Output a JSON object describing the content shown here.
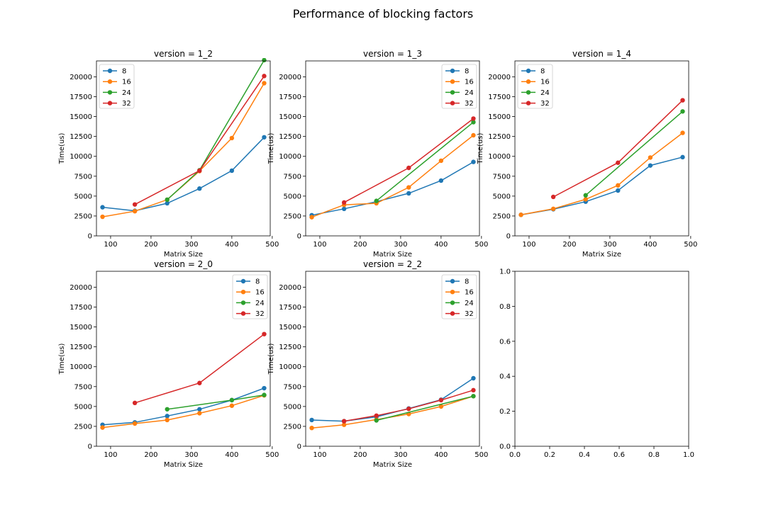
{
  "figure": {
    "title": "Performance of blocking factors"
  },
  "legend_labels": [
    "8",
    "16",
    "24",
    "32"
  ],
  "colors": {
    "8": "#1f77b4",
    "16": "#ff7f0e",
    "24": "#2ca02c",
    "32": "#d62728"
  },
  "chart_data": [
    {
      "type": "line",
      "title": "version = 1_2",
      "xlabel": "Matrix Size",
      "ylabel": "Time(us)",
      "xlim": [
        65,
        495
      ],
      "ylim": [
        0,
        22000
      ],
      "xticks": [
        100,
        200,
        300,
        400,
        500
      ],
      "yticks": [
        0,
        2500,
        5000,
        7500,
        10000,
        12500,
        15000,
        17500,
        20000
      ],
      "legend": "top-left",
      "series": [
        {
          "name": "8",
          "points": [
            [
              80,
              3600
            ],
            [
              160,
              3150
            ],
            [
              240,
              4100
            ],
            [
              320,
              5950
            ],
            [
              400,
              8200
            ],
            [
              480,
              12400
            ]
          ]
        },
        {
          "name": "16",
          "points": [
            [
              80,
              2400
            ],
            [
              160,
              3100
            ],
            [
              240,
              4550
            ],
            [
              320,
              8150
            ],
            [
              400,
              12300
            ],
            [
              480,
              19200
            ]
          ]
        },
        {
          "name": "24",
          "points": [
            [
              240,
              4550
            ],
            [
              320,
              8250
            ],
            [
              480,
              22100
            ]
          ]
        },
        {
          "name": "32",
          "points": [
            [
              160,
              3950
            ],
            [
              320,
              8200
            ],
            [
              480,
              20100
            ]
          ]
        }
      ]
    },
    {
      "type": "line",
      "title": "version = 1_3",
      "xlabel": "Matrix Size",
      "ylabel": "Time(us)",
      "xlim": [
        65,
        495
      ],
      "ylim": [
        0,
        22000
      ],
      "xticks": [
        100,
        200,
        300,
        400,
        500
      ],
      "yticks": [
        0,
        2500,
        5000,
        7500,
        10000,
        12500,
        15000,
        17500,
        20000
      ],
      "legend": "top-right",
      "series": [
        {
          "name": "8",
          "points": [
            [
              80,
              2600
            ],
            [
              160,
              3400
            ],
            [
              240,
              4300
            ],
            [
              320,
              5350
            ],
            [
              400,
              6950
            ],
            [
              480,
              9300
            ]
          ]
        },
        {
          "name": "16",
          "points": [
            [
              80,
              2350
            ],
            [
              160,
              3900
            ],
            [
              240,
              4100
            ],
            [
              320,
              6100
            ],
            [
              400,
              9450
            ],
            [
              480,
              12650
            ]
          ]
        },
        {
          "name": "24",
          "points": [
            [
              240,
              4400
            ],
            [
              480,
              14300
            ]
          ]
        },
        {
          "name": "32",
          "points": [
            [
              160,
              4200
            ],
            [
              320,
              8550
            ],
            [
              480,
              14750
            ]
          ]
        }
      ]
    },
    {
      "type": "line",
      "title": "version = 1_4",
      "xlabel": "Matrix Size",
      "ylabel": "Time(us)",
      "xlim": [
        65,
        495
      ],
      "ylim": [
        0,
        22000
      ],
      "xticks": [
        100,
        200,
        300,
        400,
        500
      ],
      "yticks": [
        0,
        2500,
        5000,
        7500,
        10000,
        12500,
        15000,
        17500,
        20000
      ],
      "legend": "top-left",
      "series": [
        {
          "name": "8",
          "points": [
            [
              80,
              2650
            ],
            [
              160,
              3350
            ],
            [
              240,
              4300
            ],
            [
              320,
              5700
            ],
            [
              400,
              8850
            ],
            [
              480,
              9900
            ]
          ]
        },
        {
          "name": "16",
          "points": [
            [
              80,
              2650
            ],
            [
              160,
              3400
            ],
            [
              240,
              4600
            ],
            [
              320,
              6350
            ],
            [
              400,
              9850
            ],
            [
              480,
              12950
            ]
          ]
        },
        {
          "name": "24",
          "points": [
            [
              240,
              5100
            ],
            [
              480,
              15650
            ]
          ]
        },
        {
          "name": "32",
          "points": [
            [
              160,
              4900
            ],
            [
              320,
              9200
            ],
            [
              480,
              17050
            ]
          ]
        }
      ]
    },
    {
      "type": "line",
      "title": "version = 2_0",
      "xlabel": "Matrix Size",
      "ylabel": "Time(us)",
      "xlim": [
        65,
        495
      ],
      "ylim": [
        0,
        22000
      ],
      "xticks": [
        100,
        200,
        300,
        400,
        500
      ],
      "yticks": [
        0,
        2500,
        5000,
        7500,
        10000,
        12500,
        15000,
        17500,
        20000
      ],
      "legend": "top-right",
      "series": [
        {
          "name": "8",
          "points": [
            [
              80,
              2700
            ],
            [
              160,
              3000
            ],
            [
              240,
              3800
            ],
            [
              320,
              4650
            ],
            [
              400,
              5800
            ],
            [
              480,
              7300
            ]
          ]
        },
        {
          "name": "16",
          "points": [
            [
              80,
              2350
            ],
            [
              160,
              2850
            ],
            [
              240,
              3300
            ],
            [
              320,
              4150
            ],
            [
              400,
              5100
            ],
            [
              480,
              6400
            ]
          ]
        },
        {
          "name": "24",
          "points": [
            [
              240,
              4650
            ],
            [
              400,
              5800
            ],
            [
              480,
              6450
            ]
          ]
        },
        {
          "name": "32",
          "points": [
            [
              160,
              5450
            ],
            [
              320,
              7950
            ],
            [
              480,
              14100
            ]
          ]
        }
      ]
    },
    {
      "type": "line",
      "title": "version = 2_2",
      "xlabel": "Matrix Size",
      "ylabel": "Time(us)",
      "xlim": [
        65,
        495
      ],
      "ylim": [
        0,
        22000
      ],
      "xticks": [
        100,
        200,
        300,
        400,
        500
      ],
      "yticks": [
        0,
        2500,
        5000,
        7500,
        10000,
        12500,
        15000,
        17500,
        20000
      ],
      "legend": "top-right",
      "series": [
        {
          "name": "8",
          "points": [
            [
              80,
              3300
            ],
            [
              160,
              3150
            ],
            [
              240,
              3700
            ],
            [
              320,
              4750
            ],
            [
              400,
              5850
            ],
            [
              480,
              8550
            ]
          ]
        },
        {
          "name": "16",
          "points": [
            [
              80,
              2300
            ],
            [
              160,
              2700
            ],
            [
              240,
              3350
            ],
            [
              320,
              4050
            ],
            [
              400,
              5000
            ],
            [
              480,
              6300
            ]
          ]
        },
        {
          "name": "24",
          "points": [
            [
              240,
              3250
            ],
            [
              480,
              6300
            ]
          ]
        },
        {
          "name": "32",
          "points": [
            [
              160,
              3150
            ],
            [
              240,
              3850
            ],
            [
              320,
              4700
            ],
            [
              400,
              5800
            ],
            [
              480,
              7050
            ]
          ]
        }
      ]
    },
    {
      "type": "empty",
      "title": "",
      "xlim": [
        0,
        1
      ],
      "ylim": [
        0,
        1
      ],
      "xticks": [
        0.0,
        0.2,
        0.4,
        0.6,
        0.8,
        1.0
      ],
      "yticks": [
        0.0,
        0.2,
        0.4,
        0.6,
        0.8,
        1.0
      ],
      "series": []
    }
  ]
}
